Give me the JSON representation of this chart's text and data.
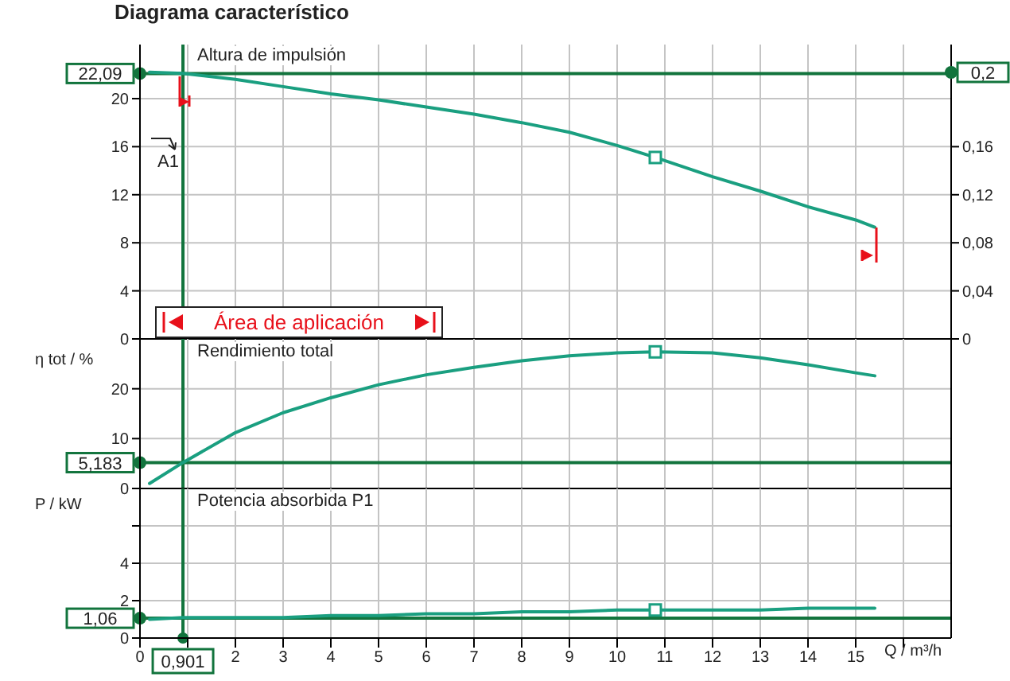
{
  "chart_data": [
    {
      "type": "line",
      "title": "Diagrama característico",
      "subtitle": "Altura de impulsión",
      "x": [
        0.2,
        0.901,
        2,
        3,
        4,
        5,
        6,
        7,
        8,
        9,
        10,
        10.8,
        12,
        13,
        14,
        15,
        15.4
      ],
      "series": [
        {
          "color": "#1a9f80",
          "values": [
            22.2,
            22.1,
            21.6,
            21.0,
            20.4,
            19.9,
            19.3,
            18.7,
            18.0,
            17.2,
            16.1,
            15.1,
            13.5,
            12.3,
            11.0,
            9.9,
            9.3
          ]
        },
        {
          "type": "scatter",
          "marker": "square",
          "color": "#1a9f80",
          "values": [
            null,
            null,
            null,
            null,
            null,
            null,
            null,
            null,
            null,
            null,
            null,
            15.1,
            null,
            null,
            null,
            null,
            null
          ]
        }
      ],
      "xlim": [
        0,
        17
      ],
      "xticks": [
        0,
        1,
        2,
        3,
        4,
        5,
        6,
        7,
        8,
        9,
        10,
        11,
        12,
        13,
        14,
        15,
        16
      ],
      "ylim": [
        0,
        24.5
      ],
      "yticks": [
        0,
        4,
        8,
        12,
        16,
        20
      ],
      "y2lim": [
        0,
        0.245
      ],
      "y2ticks": [
        0,
        {
          "value": 0.04,
          "label": "0,04"
        },
        {
          "value": 0.08,
          "label": "0,08"
        },
        {
          "value": 0.12,
          "label": "0,12"
        },
        {
          "value": 0.16,
          "label": "0,16"
        }
      ],
      "grid": true,
      "tick_labels": "y",
      "ref_lines": [
        {
          "axis": "y",
          "value": 22.09,
          "label": "22,09",
          "color": "#12743d"
        },
        {
          "axis": "x",
          "value": 0.901,
          "label": null,
          "color": "#12743d"
        }
      ],
      "annotations": [
        "A1",
        "Área de aplicación",
        "0,2"
      ]
    },
    {
      "type": "line",
      "subtitle": "Rendimiento total",
      "ylabel": "η tot / %",
      "x": [
        0.2,
        0.901,
        2,
        3,
        4,
        5,
        6,
        7,
        8,
        9,
        10,
        10.8,
        12,
        13,
        14,
        15,
        15.4
      ],
      "series": [
        {
          "color": "#1a9f80",
          "values": [
            1.0,
            5.2,
            11.2,
            15.2,
            18.2,
            20.8,
            22.8,
            24.3,
            25.6,
            26.6,
            27.2,
            27.4,
            27.2,
            26.2,
            24.8,
            23.2,
            22.6
          ]
        },
        {
          "type": "scatter",
          "marker": "square",
          "color": "#1a9f80",
          "values": [
            null,
            null,
            null,
            null,
            null,
            null,
            null,
            null,
            null,
            null,
            null,
            27.4,
            null,
            null,
            null,
            null,
            null
          ]
        }
      ],
      "xlim": [
        0,
        17
      ],
      "xticks": [
        0,
        1,
        2,
        3,
        4,
        5,
        6,
        7,
        8,
        9,
        10,
        11,
        12,
        13,
        14,
        15,
        16
      ],
      "ylim": [
        0,
        30
      ],
      "yticks": [
        0,
        10,
        20
      ],
      "grid": true,
      "tick_labels": "y",
      "ref_lines": [
        {
          "axis": "y",
          "value": 5.183,
          "label": "5,183",
          "color": "#12743d"
        },
        {
          "axis": "x",
          "value": 0.901,
          "label": null,
          "color": "#12743d"
        }
      ]
    },
    {
      "type": "line",
      "subtitle": "Potencia absorbida P1",
      "ylabel": "P / kW",
      "xlabel": "Q / m³/h",
      "x": [
        0.2,
        0.901,
        2,
        3,
        4,
        5,
        6,
        7,
        8,
        9,
        10,
        10.8,
        12,
        13,
        14,
        15,
        15.4
      ],
      "series": [
        {
          "color": "#1a9f80",
          "values": [
            1.0,
            1.1,
            1.1,
            1.1,
            1.2,
            1.2,
            1.3,
            1.3,
            1.4,
            1.4,
            1.5,
            1.5,
            1.5,
            1.5,
            1.6,
            1.6,
            1.6
          ]
        },
        {
          "type": "scatter",
          "marker": "square",
          "color": "#1a9f80",
          "values": [
            null,
            null,
            null,
            null,
            null,
            null,
            null,
            null,
            null,
            null,
            null,
            1.5,
            null,
            null,
            null,
            null,
            null
          ]
        }
      ],
      "xlim": [
        0,
        17
      ],
      "xticks": [
        0,
        {
          "value": 1,
          "label": null
        },
        2,
        3,
        4,
        5,
        6,
        7,
        8,
        9,
        10,
        11,
        12,
        13,
        14,
        15,
        {
          "value": 16,
          "label": null
        }
      ],
      "ylim": [
        0,
        8
      ],
      "yticks": [
        0,
        2,
        4,
        {
          "value": 6,
          "label": null
        }
      ],
      "grid": true,
      "ref_lines": [
        {
          "axis": "y",
          "value": 1.06,
          "label": "1,06",
          "color": "#12743d"
        },
        {
          "axis": "x",
          "value": 0.901,
          "label": "0,901",
          "color": "#12743d"
        }
      ]
    }
  ]
}
